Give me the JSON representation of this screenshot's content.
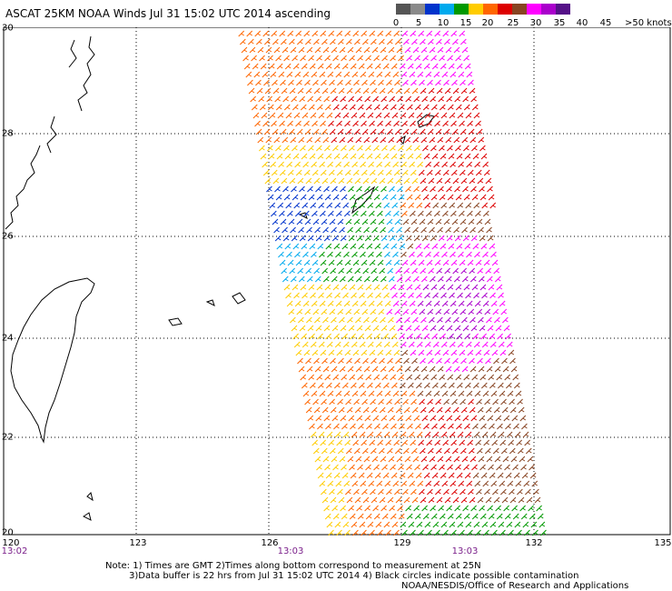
{
  "header": {
    "title": "ASCAT 25KM NOAA Winds Jul 31 15:02 UTC 2014 ascending"
  },
  "color_scale": {
    "unit": ">50 knots",
    "ticks": [
      "0",
      "5",
      "10",
      "15",
      "20",
      "25",
      "30",
      "35",
      "40",
      "45"
    ],
    "colors": [
      "#555555",
      "#8a8a8a",
      "#0033cc",
      "#00aaee",
      "#009900",
      "#ffcc00",
      "#ff6600",
      "#dd0000",
      "#884422",
      "#ff00ff",
      "#aa00cc",
      "#551188"
    ]
  },
  "map": {
    "lat_labels": [
      "30",
      "28",
      "26",
      "24",
      "22",
      "20"
    ],
    "lon_labels": [
      "120",
      "123",
      "126",
      "129",
      "132",
      "135"
    ],
    "time_labels": [
      "13:02",
      "13:03",
      "13:03"
    ]
  },
  "footer": {
    "line1": "Note: 1) Times are GMT 2)Times along bottom correspond to measurement at 25N",
    "line2": "3)Data buffer is 22 hrs from Jul 31 15:02 UTC 2014 4) Black circles indicate possible contamination",
    "line3": "NOAA/NESDIS/Office of Research and Applications"
  }
}
